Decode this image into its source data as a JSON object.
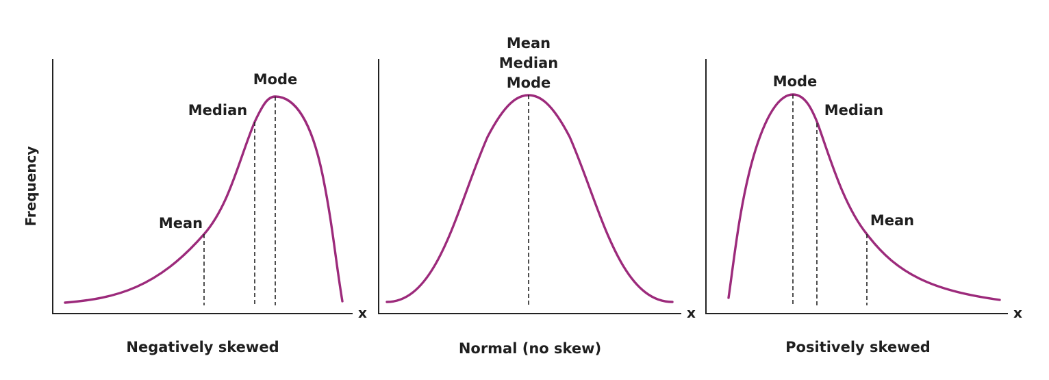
{
  "y_axis_label": "Frequency",
  "x_axis_symbol": "x",
  "curve_color": "#9c2a7b",
  "panels": [
    {
      "caption": "Negatively skewed",
      "shape": "negatively-skewed",
      "markers": [
        {
          "label": "Mean"
        },
        {
          "label": "Median"
        },
        {
          "label": "Mode"
        }
      ]
    },
    {
      "caption": "Normal (no skew)",
      "shape": "symmetric",
      "markers": [
        {
          "label": "Mean"
        },
        {
          "label": "Median"
        },
        {
          "label": "Mode"
        }
      ]
    },
    {
      "caption": "Positively skewed",
      "shape": "positively-skewed",
      "markers": [
        {
          "label": "Mode"
        },
        {
          "label": "Median"
        },
        {
          "label": "Mean"
        }
      ]
    }
  ]
}
